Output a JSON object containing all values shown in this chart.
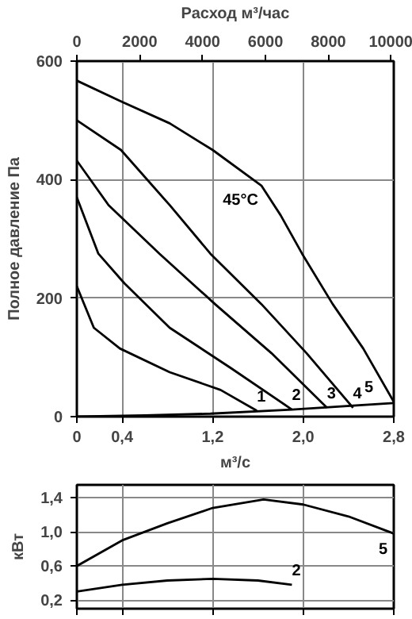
{
  "chart_data": [
    {
      "type": "line",
      "xlabel": "м³/с",
      "ylabel": "Полное давление Па",
      "x2label": "Расход м³/час",
      "xlim": [
        0,
        2.8
      ],
      "ylim": [
        0,
        600
      ],
      "xticks": [
        {
          "value": 0,
          "label": "0"
        },
        {
          "value": 0.4,
          "label": "0,4"
        },
        {
          "value": 1.2,
          "label": "1,2"
        },
        {
          "value": 2.0,
          "label": "2,0"
        },
        {
          "value": 2.8,
          "label": "2,8"
        }
      ],
      "yticks": [
        0,
        200,
        400,
        600
      ],
      "x2lim": [
        0,
        10080
      ],
      "x2ticks": [
        0,
        2000,
        4000,
        6000,
        8000,
        10000
      ],
      "grid": true,
      "marker": "none",
      "line_style": "solid",
      "series": [
        {
          "name": "5",
          "color": "#000000",
          "x": [
            0,
            0.39,
            0.82,
            1.2,
            1.63,
            1.8,
            1.99,
            2.26,
            2.53,
            2.8
          ],
          "values": [
            567,
            532,
            495,
            450,
            390,
            340,
            275,
            190,
            115,
            25
          ]
        },
        {
          "name": "4",
          "color": "#000000",
          "x": [
            0,
            0.39,
            0.82,
            1.18,
            1.63,
            2.03,
            2.44
          ],
          "values": [
            500,
            450,
            357,
            275,
            190,
            107,
            15
          ]
        },
        {
          "name": "3",
          "color": "#000000",
          "x": [
            0,
            0.28,
            0.73,
            1.22,
            1.72,
            2.21
          ],
          "values": [
            432,
            357,
            275,
            190,
            107,
            15
          ]
        },
        {
          "name": "2",
          "color": "#000000",
          "x": [
            0,
            0.19,
            0.42,
            0.82,
            1.36,
            1.9
          ],
          "values": [
            370,
            275,
            225,
            150,
            82,
            12
          ]
        },
        {
          "name": "1",
          "color": "#000000",
          "x": [
            0,
            0.15,
            0.38,
            0.82,
            1.27,
            1.59
          ],
          "values": [
            220,
            150,
            115,
            75,
            45,
            10
          ]
        },
        {
          "color": "#000000",
          "x": [
            0,
            0.6,
            1.18,
            1.9,
            2.8
          ],
          "values": [
            0,
            2,
            5,
            12,
            23
          ]
        }
      ],
      "annotations": [
        "45°C"
      ]
    },
    {
      "type": "line",
      "ylabel": "кВт",
      "xlim": [
        0,
        2.8
      ],
      "ylim": [
        0.1,
        1.55
      ],
      "xticks": [
        0,
        0.4,
        1.2,
        2.0,
        2.8
      ],
      "yticks": [
        {
          "value": 0.2,
          "label": "0,2"
        },
        {
          "value": 0.6,
          "label": "0,6"
        },
        {
          "value": 1.0,
          "label": "1,0"
        },
        {
          "value": 1.4,
          "label": "1,4"
        }
      ],
      "tick_labels": "y",
      "grid": true,
      "marker": "none",
      "line_style": "solid",
      "series": [
        {
          "name": "5",
          "color": "#000000",
          "x": [
            0,
            0.4,
            0.8,
            1.2,
            1.65,
            2.0,
            2.4,
            2.8
          ],
          "values": [
            0.6,
            0.9,
            1.1,
            1.28,
            1.38,
            1.32,
            1.18,
            0.98
          ]
        },
        {
          "name": "2",
          "color": "#000000",
          "x": [
            0,
            0.4,
            0.8,
            1.2,
            1.6,
            1.9
          ],
          "values": [
            0.3,
            0.38,
            0.43,
            0.45,
            0.43,
            0.38
          ]
        }
      ]
    }
  ]
}
